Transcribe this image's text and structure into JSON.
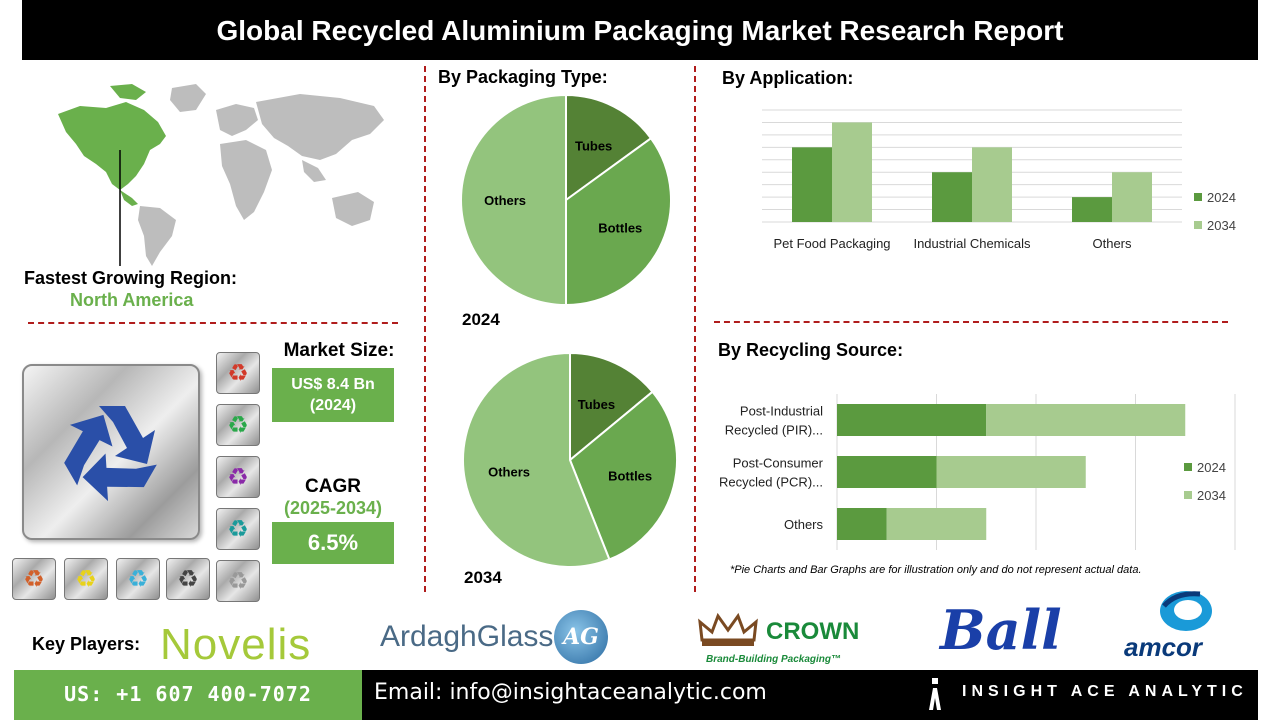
{
  "header": {
    "title": "Global Recycled Aluminium Packaging Market Research Report"
  },
  "region": {
    "label": "Fastest Growing Region:",
    "value": "North America"
  },
  "market": {
    "size_label": "Market Size:",
    "size_value_line1": "US$ 8.4 Bn",
    "size_value_line2": "(2024)",
    "cagr_label": "CAGR",
    "cagr_period": "(2025-2034)",
    "cagr_value": "6.5%"
  },
  "sections": {
    "packaging_type": "By Packaging Type:",
    "application": "By  Application:",
    "recycling_source": "By Recycling Source:"
  },
  "chart_data": [
    {
      "type": "pie",
      "title": "2024",
      "labels": [
        "Tubes",
        "Bottles",
        "Others"
      ],
      "values": [
        15,
        35,
        50
      ],
      "colors": [
        "#548235",
        "#6aa84f",
        "#93c47d"
      ]
    },
    {
      "type": "pie",
      "title": "2034",
      "labels": [
        "Tubes",
        "Bottles",
        "Others"
      ],
      "values": [
        14,
        30,
        56
      ],
      "colors": [
        "#548235",
        "#6aa84f",
        "#93c47d"
      ]
    },
    {
      "type": "bar",
      "categories": [
        "Pet Food Packaging",
        "Industrial Chemicals",
        "Others"
      ],
      "series": [
        {
          "name": "2024",
          "values": [
            3,
            2,
            1
          ],
          "color": "#5b9a3f"
        },
        {
          "name": "2034",
          "values": [
            4,
            3,
            2
          ],
          "color": "#a7cb8f"
        }
      ],
      "ylim": [
        0,
        4.5
      ],
      "grid": true,
      "legend": "right"
    },
    {
      "type": "bar",
      "orientation": "horizontal",
      "stacked": true,
      "categories": [
        "Post-Industrial Recycled (PIR)...",
        "Post-Consumer Recycled (PCR)...",
        "Others"
      ],
      "category_lines": [
        [
          "Post-Industrial",
          "Recycled (PIR)..."
        ],
        [
          "Post-Consumer",
          "Recycled (PCR)..."
        ],
        [
          "Others"
        ]
      ],
      "series": [
        {
          "name": "2024",
          "values": [
            3,
            2,
            1
          ],
          "color": "#5b9a3f"
        },
        {
          "name": "2034",
          "values": [
            4,
            3,
            2
          ],
          "color": "#a7cb8f"
        }
      ],
      "xlim": [
        0,
        8
      ],
      "grid": true,
      "legend": "right"
    }
  ],
  "footnote": "*Pie Charts and Bar Graphs are for illustration only and do not represent actual data.",
  "key_players": {
    "label": "Key Players:",
    "logos": [
      "Novelis",
      "ArdaghGlass",
      "AG",
      "CROWN",
      "Brand-Building Packaging™",
      "Ball",
      "amcor"
    ]
  },
  "footer": {
    "phone": "US: +1 607 400-7072",
    "email": "Email: info@insightaceanalytic.com",
    "brand": "INSIGHT ACE ANALYTIC"
  },
  "icons": [
    "world-map-icon",
    "recycle-icon"
  ],
  "colors": {
    "accent_green": "#6ab04c",
    "dark": "#000000",
    "divider": "#b01c1c"
  }
}
